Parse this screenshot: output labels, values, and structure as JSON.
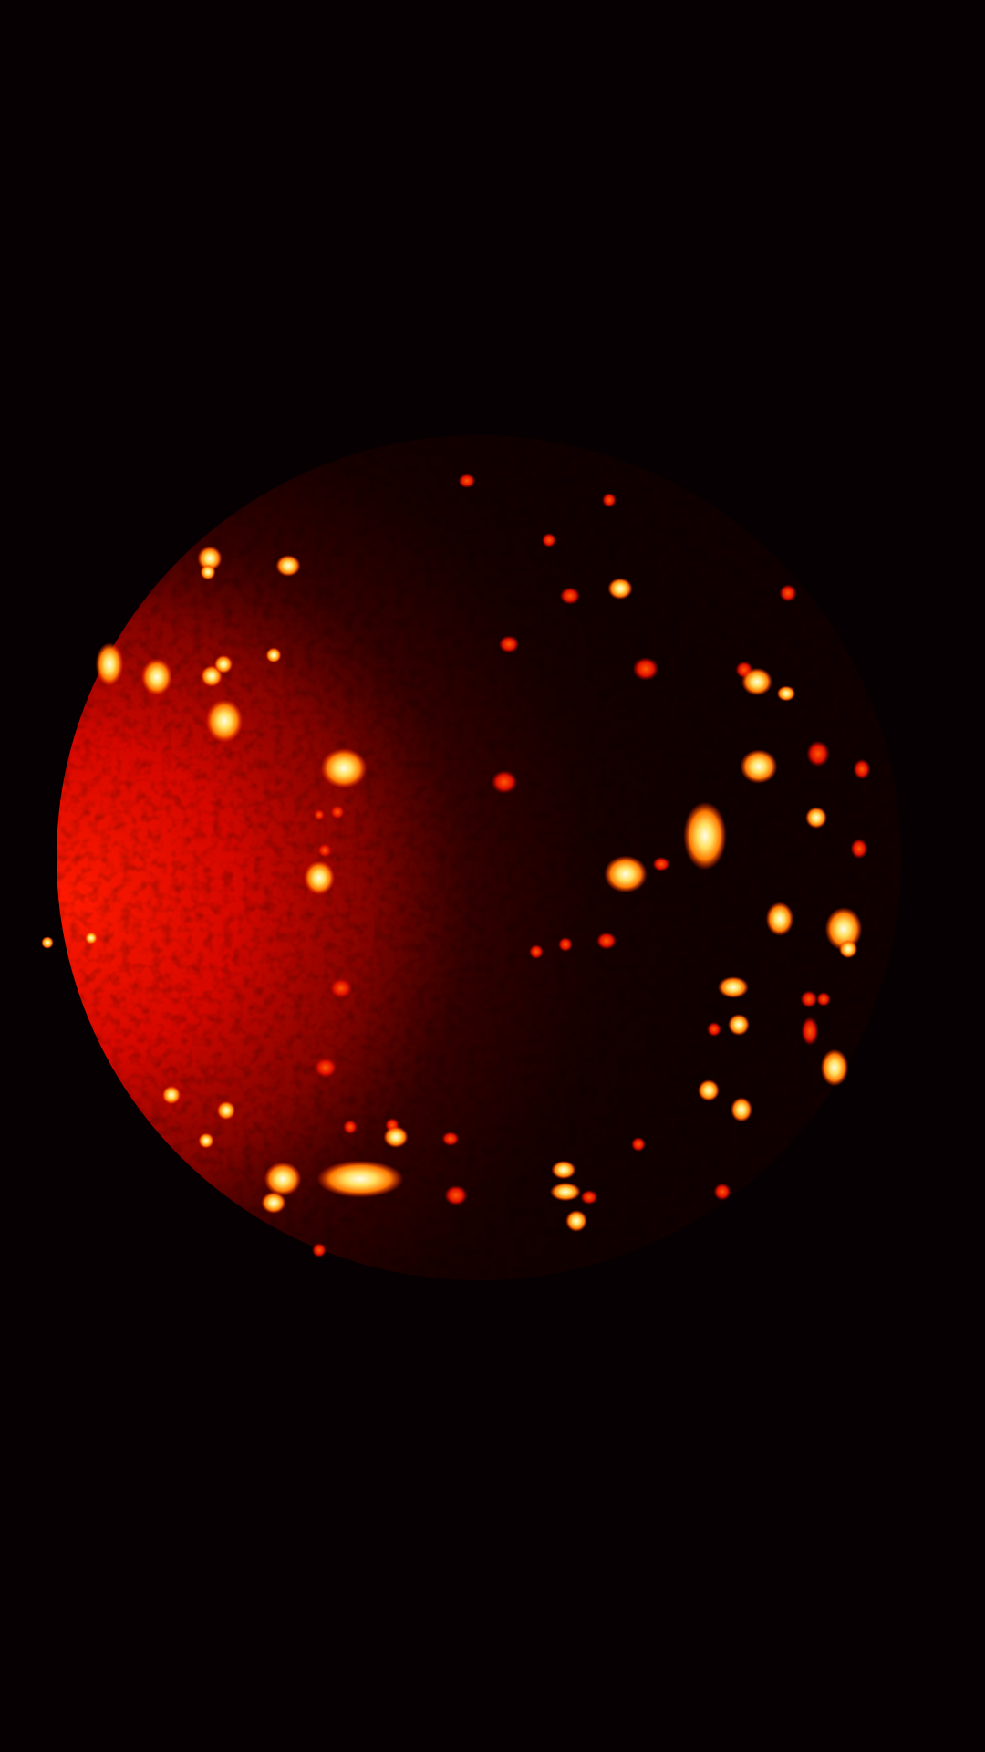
{
  "image": {
    "subject": "moon-infrared-hotspots",
    "colors": {
      "background": "#070002",
      "limb_red": "#e00800",
      "dark_side": "#140000",
      "hotspot_core": "#fffbe0",
      "hotspot_glow": "#ffc400"
    }
  }
}
